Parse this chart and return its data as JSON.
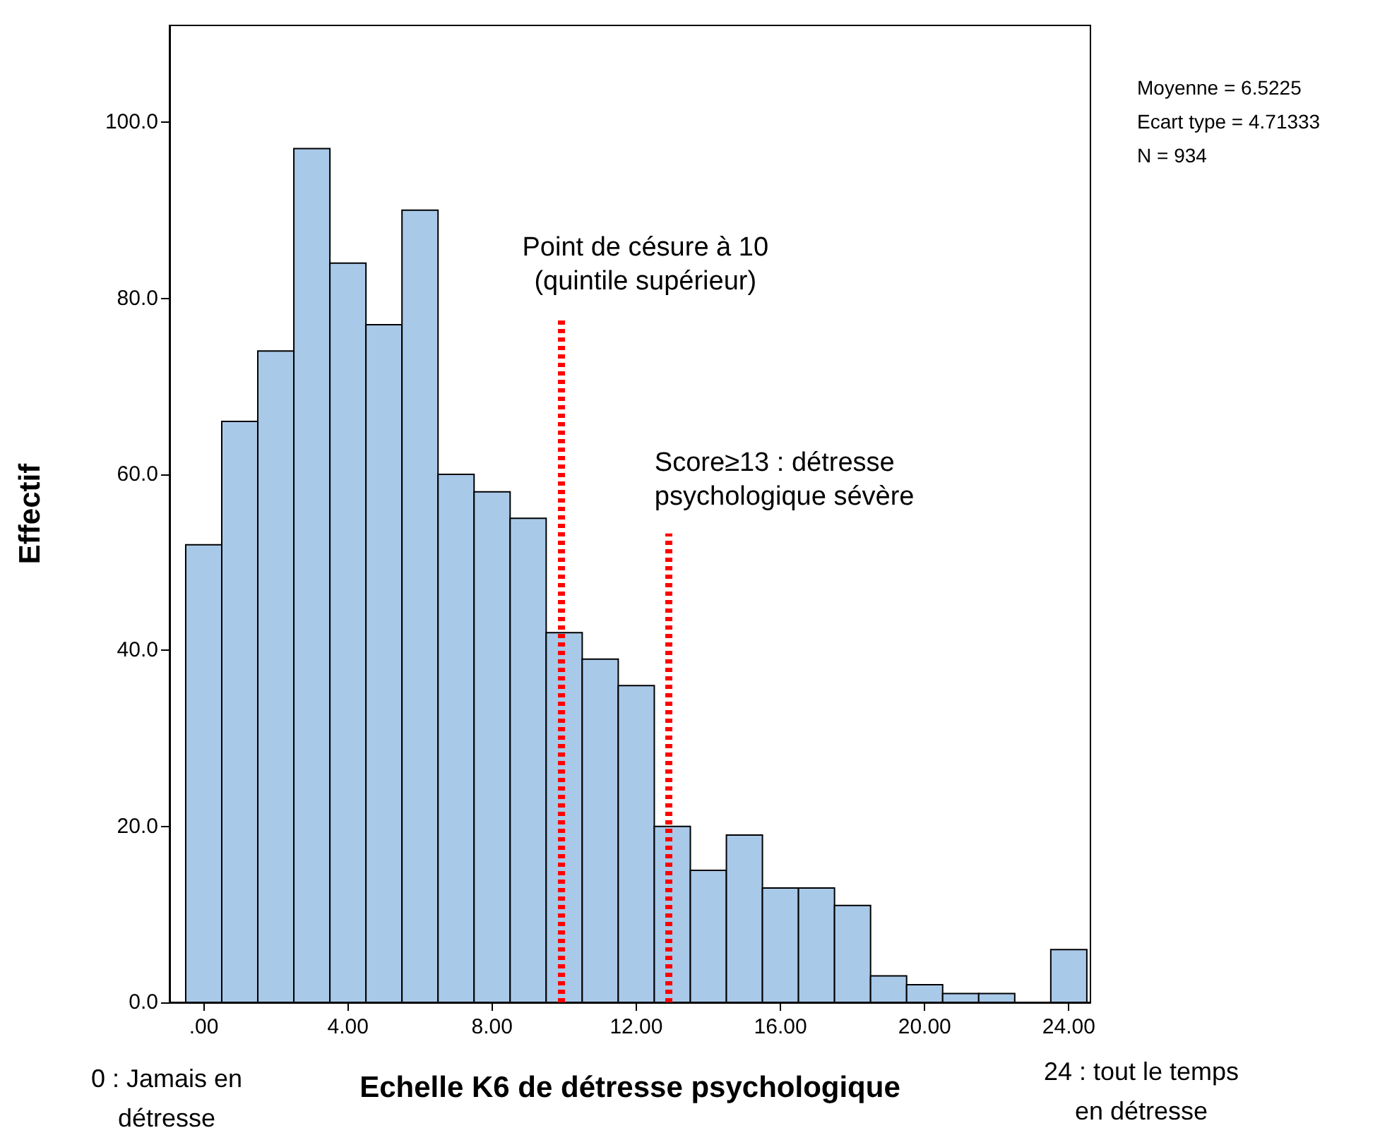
{
  "chart_data": {
    "type": "histogram",
    "xlabel": "Echelle K6 de détresse psychologique",
    "ylabel": "Effectif",
    "bins": [
      -0.5,
      0.5,
      1.5,
      2.5,
      3.5,
      4.5,
      5.5,
      6.5,
      7.5,
      8.5,
      9.5,
      10.5,
      11.5,
      12.5,
      13.5,
      14.5,
      15.5,
      16.5,
      17.5,
      18.5,
      19.5,
      20.5,
      21.5,
      22.5,
      23.5,
      24.5
    ],
    "values": [
      52,
      66,
      74,
      97,
      84,
      77,
      90,
      60,
      58,
      55,
      42,
      39,
      36,
      20,
      15,
      19,
      13,
      13,
      11,
      3,
      2,
      1,
      1,
      0,
      6
    ],
    "color": "#a9c9e9",
    "xlim": [
      -0.95,
      24.6
    ],
    "ylim": [
      0,
      111
    ],
    "xticks": [
      {
        "value": 0,
        "label": ".00"
      },
      {
        "value": 4,
        "label": "4.00"
      },
      {
        "value": 8,
        "label": "8.00"
      },
      {
        "value": 12,
        "label": "12.00"
      },
      {
        "value": 16,
        "label": "16.00"
      },
      {
        "value": 20,
        "label": "20.00"
      },
      {
        "value": 24,
        "label": "24.00"
      }
    ],
    "yticks": [
      {
        "value": 0,
        "label": "0.0"
      },
      {
        "value": 20,
        "label": "20.0"
      },
      {
        "value": 40,
        "label": "40.0"
      },
      {
        "value": 60,
        "label": "60.0"
      },
      {
        "value": 80,
        "label": "80.0"
      },
      {
        "value": 100,
        "label": "100.0"
      }
    ],
    "ref_lines": [
      {
        "axis": "x",
        "value": 9.9,
        "label": "Point de césure à 10\n(quintile supérieur)",
        "color": "#ff0000",
        "line_style": "dotted"
      },
      {
        "axis": "x",
        "value": 12.9,
        "label": "Score≥13 : détresse\npsychologique sévère",
        "color": "#ff0000",
        "line_style": "dotted"
      }
    ],
    "annotations": [
      "Moyenne = 6.5225\nEcart type = 4.71333\nN = 934",
      "0 : Jamais en\ndétresse",
      "24 : tout le temps\nen détresse"
    ],
    "grid": false
  }
}
